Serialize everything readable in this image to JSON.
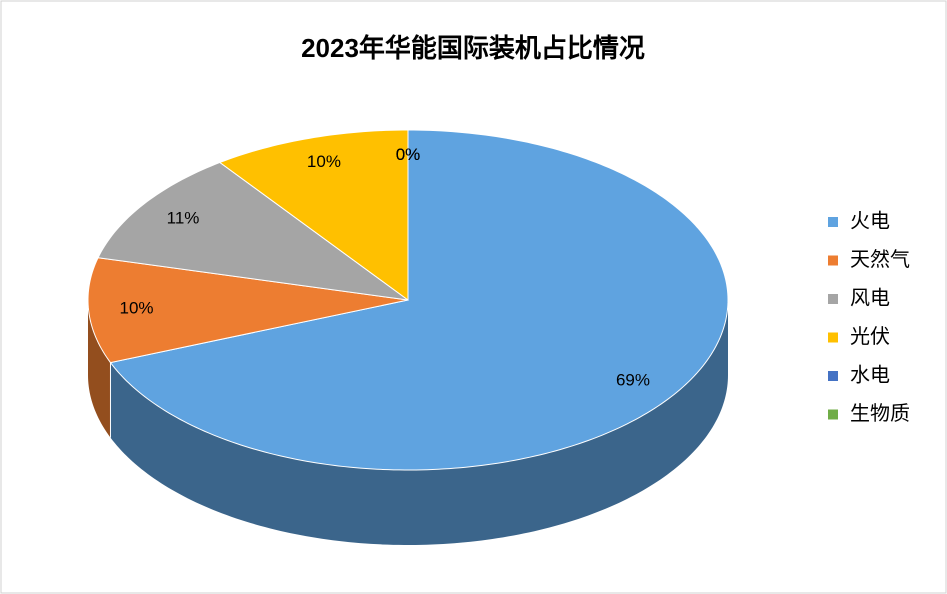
{
  "chart_data": {
    "type": "pie3d",
    "title": "2023年华能国际装机占比情况",
    "categories": [
      "火电",
      "天然气",
      "风电",
      "光伏",
      "水电",
      "生物质"
    ],
    "values": [
      69,
      10,
      11,
      10,
      0,
      0
    ],
    "value_labels": [
      "69%",
      "10%",
      "11%",
      "10%",
      "0%",
      "0%"
    ],
    "colors": [
      "#5fa3e0",
      "#ed7d31",
      "#a5a5a5",
      "#ffc000",
      "#4472c4",
      "#70ad47"
    ],
    "legend": "right"
  }
}
